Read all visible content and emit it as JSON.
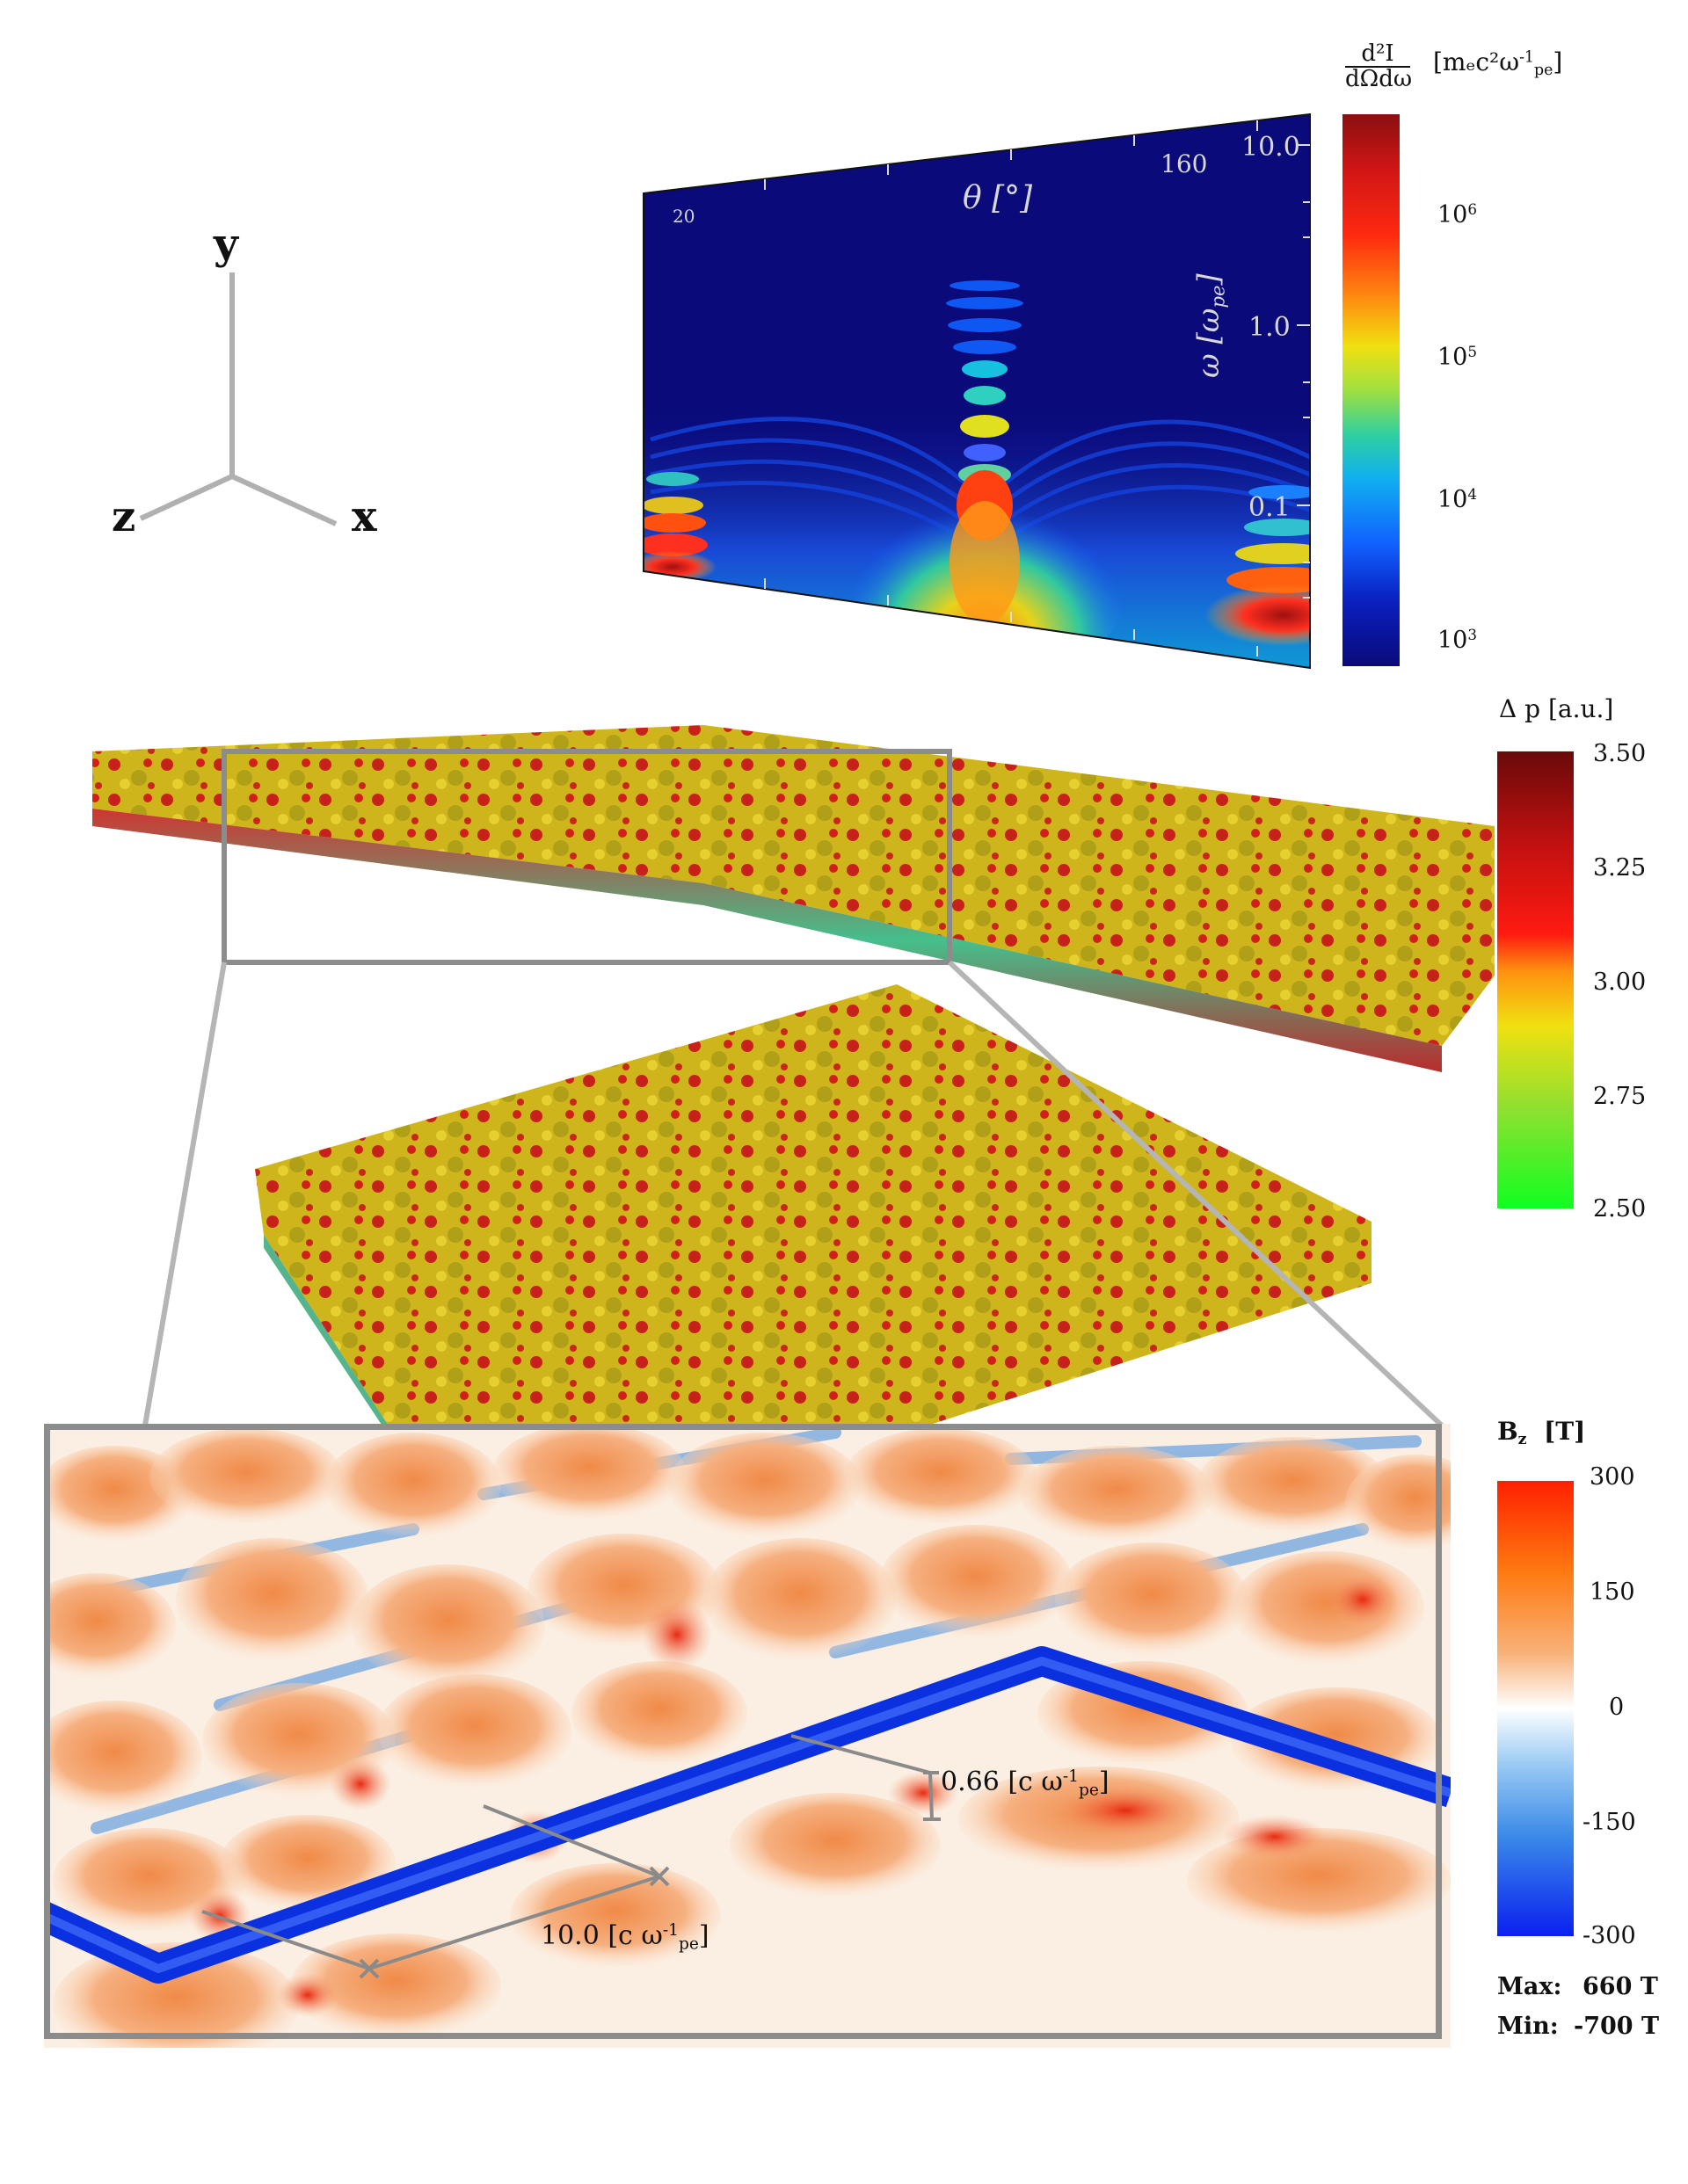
{
  "axes_triad": {
    "y": "y",
    "z": "z",
    "x": "x"
  },
  "spectrum": {
    "tick_20": "20",
    "tick_160": "160",
    "theta_label": "θ [°]",
    "omega_label": "ω [ω",
    "omega_sub": "pe",
    "omega_close": "]",
    "omega_ticks": [
      "10.0",
      "1.0",
      "0.1"
    ],
    "colorbar_title_num": "d²I",
    "colorbar_title_den": "dΩdω",
    "colorbar_units": "[mₑc²ω",
    "colorbar_units_sup": "-1",
    "colorbar_units_sub": "pe",
    "colorbar_units_close": "]",
    "colorbar_ticks": [
      "10",
      "10",
      "10",
      "10"
    ],
    "colorbar_tick_exps": [
      "6",
      "5",
      "4",
      "3"
    ]
  },
  "momentum_colorbar": {
    "title": "Δ p  [a.u.]",
    "ticks": [
      "3.50",
      "3.25",
      "3.00",
      "2.75",
      "2.50"
    ]
  },
  "bz_colorbar": {
    "title": "B",
    "title_sub": "z",
    "title_units": "  [T]",
    "ticks": [
      "300",
      "150",
      "0",
      "-150",
      "-300"
    ],
    "max_label": "Max:",
    "max_value": "660 T",
    "min_label": "Min:",
    "min_value": "-700 T"
  },
  "measurements": {
    "thickness_value": "0.66 [c ω",
    "thickness_sup": "-1",
    "thickness_sub": "pe",
    "thickness_close": "]",
    "length_value": "10.0 [c ω",
    "length_sup": "-1",
    "length_sub": "pe",
    "length_close": "]"
  },
  "colors": {
    "spectrum_bg": "#0a0a7a",
    "dp_red": "#d01515",
    "dp_yellow": "#d8c21c",
    "dp_green": "#22c27a",
    "bz_blue": "#0a3ce0",
    "bz_orange": "#f4a060",
    "frame_gray": "#8c8c8c"
  }
}
